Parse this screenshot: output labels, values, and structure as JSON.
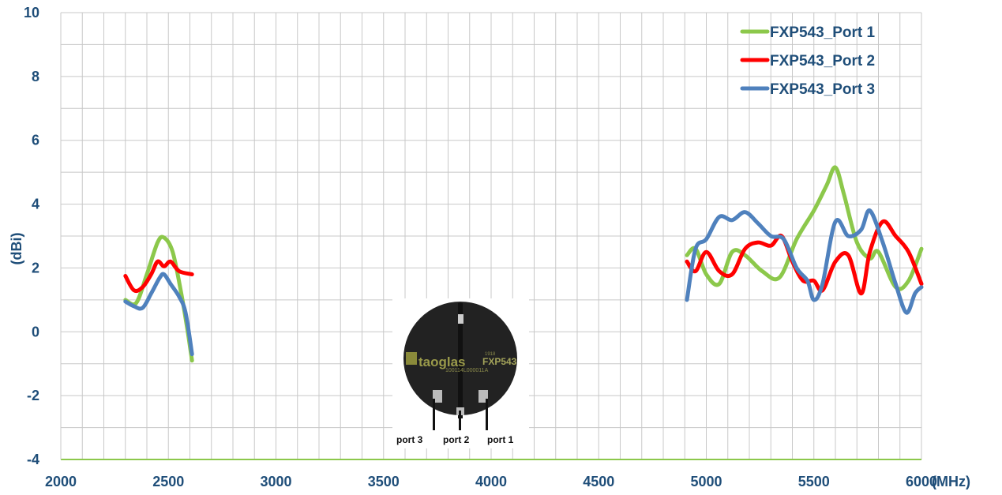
{
  "chart_data": {
    "type": "line",
    "ylabel": "(dBi)",
    "xunit": "(MHz)",
    "xlim": [
      2000,
      6000
    ],
    "ylim": [
      -4,
      10
    ],
    "xticks": [
      2000,
      2500,
      3000,
      3500,
      4000,
      4500,
      5000,
      5500,
      6000
    ],
    "yticks": [
      -4,
      -2,
      0,
      2,
      4,
      6,
      8,
      10
    ],
    "grid": true,
    "legend_position": "top-right",
    "series": [
      {
        "name": "FXP543_Port 1",
        "color": "#8cc84b",
        "segments": [
          [
            [
              2300,
              1.0
            ],
            [
              2350,
              0.9
            ],
            [
              2400,
              1.8
            ],
            [
              2450,
              2.8
            ],
            [
              2480,
              2.95
            ],
            [
              2520,
              2.5
            ],
            [
              2560,
              1.2
            ],
            [
              2590,
              0.0
            ],
            [
              2610,
              -0.9
            ]
          ],
          [
            [
              4910,
              2.4
            ],
            [
              4950,
              2.6
            ],
            [
              5000,
              1.8
            ],
            [
              5060,
              1.5
            ],
            [
              5120,
              2.5
            ],
            [
              5180,
              2.4
            ],
            [
              5260,
              1.9
            ],
            [
              5340,
              1.7
            ],
            [
              5420,
              2.9
            ],
            [
              5500,
              3.8
            ],
            [
              5560,
              4.6
            ],
            [
              5600,
              5.15
            ],
            [
              5640,
              4.3
            ],
            [
              5700,
              2.8
            ],
            [
              5760,
              2.3
            ],
            [
              5800,
              2.5
            ],
            [
              5880,
              1.4
            ],
            [
              5940,
              1.6
            ],
            [
              6000,
              2.6
            ]
          ]
        ]
      },
      {
        "name": "FXP543_Port 2",
        "color": "#ff0000",
        "segments": [
          [
            [
              2300,
              1.75
            ],
            [
              2340,
              1.3
            ],
            [
              2380,
              1.4
            ],
            [
              2420,
              1.8
            ],
            [
              2450,
              2.2
            ],
            [
              2480,
              2.05
            ],
            [
              2510,
              2.2
            ],
            [
              2550,
              1.9
            ],
            [
              2610,
              1.8
            ]
          ],
          [
            [
              4910,
              2.2
            ],
            [
              4950,
              1.9
            ],
            [
              5000,
              2.5
            ],
            [
              5060,
              1.9
            ],
            [
              5120,
              1.8
            ],
            [
              5180,
              2.6
            ],
            [
              5240,
              2.8
            ],
            [
              5300,
              2.7
            ],
            [
              5350,
              3.0
            ],
            [
              5400,
              2.2
            ],
            [
              5450,
              1.6
            ],
            [
              5500,
              1.6
            ],
            [
              5540,
              1.3
            ],
            [
              5600,
              2.2
            ],
            [
              5660,
              2.4
            ],
            [
              5720,
              1.2
            ],
            [
              5760,
              2.5
            ],
            [
              5820,
              3.45
            ],
            [
              5880,
              3.0
            ],
            [
              5940,
              2.5
            ],
            [
              6000,
              1.5
            ]
          ]
        ]
      },
      {
        "name": "FXP543_Port 3",
        "color": "#4f81bd",
        "segments": [
          [
            [
              2300,
              0.95
            ],
            [
              2340,
              0.8
            ],
            [
              2380,
              0.75
            ],
            [
              2420,
              1.2
            ],
            [
              2460,
              1.7
            ],
            [
              2480,
              1.8
            ],
            [
              2510,
              1.5
            ],
            [
              2550,
              1.1
            ],
            [
              2580,
              0.6
            ],
            [
              2610,
              -0.7
            ]
          ],
          [
            [
              4910,
              1.0
            ],
            [
              4950,
              2.6
            ],
            [
              5000,
              2.9
            ],
            [
              5060,
              3.6
            ],
            [
              5120,
              3.5
            ],
            [
              5180,
              3.75
            ],
            [
              5240,
              3.4
            ],
            [
              5300,
              3.0
            ],
            [
              5360,
              2.9
            ],
            [
              5420,
              2.0
            ],
            [
              5470,
              1.6
            ],
            [
              5500,
              1.0
            ],
            [
              5540,
              1.5
            ],
            [
              5600,
              3.45
            ],
            [
              5660,
              3.0
            ],
            [
              5720,
              3.2
            ],
            [
              5760,
              3.8
            ],
            [
              5820,
              2.8
            ],
            [
              5880,
              1.5
            ],
            [
              5930,
              0.6
            ],
            [
              5970,
              1.2
            ],
            [
              6000,
              1.4
            ]
          ]
        ]
      }
    ],
    "inset": {
      "brand": "taoglas",
      "model": "FXP543",
      "serial": "100114L000011A",
      "small": "1918",
      "ports": [
        "port 3",
        "port 2",
        "port 1"
      ]
    }
  }
}
